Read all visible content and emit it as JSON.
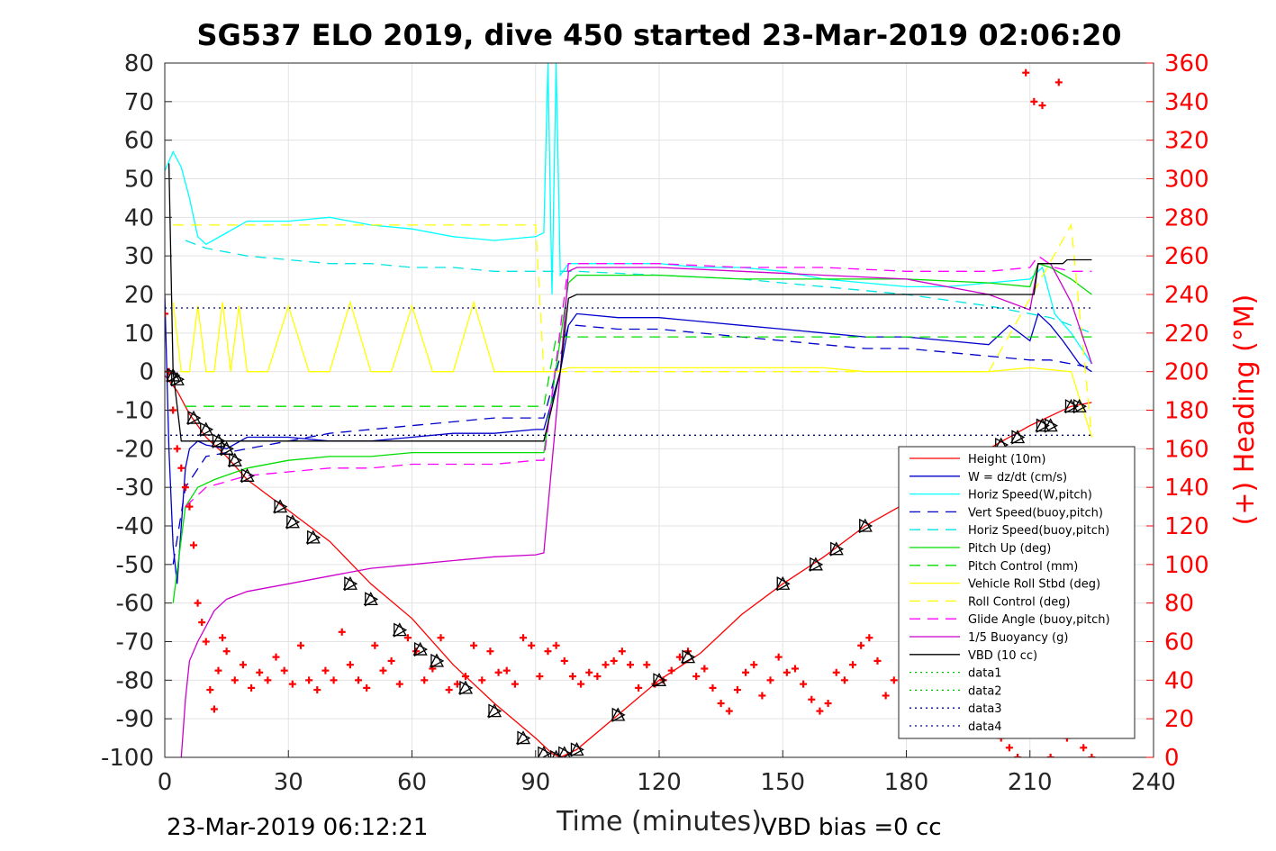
{
  "title": "SG537 ELO 2019, dive 450 started 23-Mar-2019 02:06:20",
  "footer": {
    "left": "23-Mar-2019 06:12:21",
    "right": "VBD bias =0 cc"
  },
  "chart_data": {
    "type": "line",
    "title": "SG537 ELO 2019, dive 450 started 23-Mar-2019 02:06:20",
    "xlabel": "Time (minutes)",
    "ylabel": "",
    "ylabel_right": "(+) Heading (°M)",
    "xlim": [
      0,
      240
    ],
    "ylim": [
      -100,
      80
    ],
    "ylim_right": [
      0,
      360
    ],
    "x_ticks": [
      "0",
      "30",
      "60",
      "90",
      "120",
      "150",
      "180",
      "210",
      "240"
    ],
    "y_ticks": [
      "-100",
      "-90",
      "-80",
      "-70",
      "-60",
      "-50",
      "-40",
      "-30",
      "-20",
      "-10",
      "0",
      "10",
      "20",
      "30",
      "40",
      "50",
      "60",
      "70",
      "80"
    ],
    "y_ticks_right": [
      "0",
      "20",
      "40",
      "60",
      "80",
      "100",
      "120",
      "140",
      "160",
      "180",
      "200",
      "220",
      "240",
      "260",
      "280",
      "300",
      "320",
      "340",
      "360"
    ],
    "grid": true,
    "legend_position": "right-middle",
    "series": [
      {
        "name": "Height (10m)",
        "color": "#ff0000",
        "style": "solid",
        "x": [
          0,
          3,
          6,
          10,
          15,
          20,
          30,
          40,
          50,
          60,
          70,
          80,
          90,
          94,
          96,
          100,
          110,
          120,
          130,
          140,
          150,
          160,
          170,
          180,
          190,
          200,
          210,
          220,
          225
        ],
        "y": [
          -1,
          -5,
          -11,
          -17,
          -22,
          -28,
          -36,
          -44,
          -55,
          -64,
          -76,
          -86,
          -95,
          -99,
          -100,
          -98,
          -89,
          -80,
          -73,
          -63,
          -55,
          -48,
          -40,
          -34,
          -26,
          -20,
          -14,
          -9,
          -8
        ]
      },
      {
        "name": "W = dz/dt (cm/s)",
        "color": "#0000cc",
        "style": "solid",
        "x": [
          0,
          1,
          2,
          3,
          4,
          5,
          6,
          8,
          10,
          15,
          20,
          30,
          40,
          50,
          60,
          70,
          80,
          90,
          92,
          96,
          98,
          100,
          110,
          120,
          130,
          140,
          150,
          160,
          170,
          180,
          190,
          200,
          205,
          210,
          212,
          215,
          218,
          222,
          225
        ],
        "y": [
          20,
          -20,
          -45,
          -55,
          -40,
          -25,
          -20,
          -18,
          -19,
          -20,
          -17,
          -17,
          -18,
          -18,
          -17,
          -16,
          -16,
          -15,
          -15,
          0,
          12,
          15,
          14,
          14,
          13,
          12,
          11,
          10,
          9,
          9,
          8,
          7,
          12,
          8,
          15,
          12,
          8,
          2,
          0
        ]
      },
      {
        "name": "Horiz Speed(W,pitch)",
        "color": "#00ffff",
        "style": "solid",
        "x": [
          0,
          2,
          4,
          6,
          8,
          10,
          15,
          20,
          30,
          40,
          50,
          60,
          70,
          80,
          90,
          92,
          93,
          94,
          95,
          96,
          98,
          100,
          110,
          120,
          130,
          140,
          150,
          160,
          170,
          180,
          190,
          200,
          210,
          213,
          216,
          220,
          225
        ],
        "y": [
          52,
          57,
          53,
          45,
          35,
          33,
          36,
          39,
          39,
          40,
          38,
          37,
          35,
          34,
          35,
          36,
          80,
          20,
          80,
          25,
          28,
          28,
          28,
          28,
          27,
          27,
          26,
          24,
          23,
          22,
          22,
          23,
          24,
          27,
          15,
          10,
          2
        ]
      },
      {
        "name": "Vert Speed(buoy,pitch)",
        "color": "#0000cc",
        "style": "dashed",
        "x": [
          2,
          5,
          10,
          20,
          30,
          40,
          50,
          60,
          70,
          80,
          90,
          92,
          98,
          100,
          110,
          120,
          130,
          140,
          150,
          160,
          170,
          180,
          190,
          200,
          210,
          215,
          220,
          225
        ],
        "y": [
          -50,
          -30,
          -22,
          -20,
          -18,
          -16,
          -15,
          -14,
          -13,
          -12,
          -12,
          -12,
          12,
          12,
          11,
          11,
          10,
          9,
          8,
          7,
          6,
          6,
          5,
          4,
          3,
          3,
          2,
          1
        ]
      },
      {
        "name": "Horiz Speed(buoy,pitch)",
        "color": "#00e5e5",
        "style": "dashed",
        "x": [
          5,
          10,
          20,
          30,
          40,
          50,
          60,
          70,
          80,
          90,
          92,
          98,
          100,
          120,
          140,
          160,
          180,
          200,
          210,
          215,
          220,
          225
        ],
        "y": [
          34,
          32,
          30,
          29,
          28,
          28,
          27,
          27,
          26,
          26,
          26,
          26,
          26,
          25,
          24,
          22,
          20,
          17,
          15,
          14,
          12,
          10
        ]
      },
      {
        "name": "Pitch Up (deg)",
        "color": "#00dd00",
        "style": "solid",
        "x": [
          2,
          5,
          8,
          12,
          20,
          30,
          40,
          50,
          60,
          70,
          80,
          90,
          92,
          98,
          100,
          120,
          140,
          160,
          180,
          200,
          210,
          212,
          215,
          220,
          225
        ],
        "y": [
          -60,
          -35,
          -30,
          -28,
          -25,
          -23,
          -22,
          -22,
          -21,
          -21,
          -21,
          -21,
          -21,
          23,
          25,
          25,
          24,
          24,
          24,
          23,
          22,
          28,
          27,
          24,
          20
        ]
      },
      {
        "name": "Pitch Control (mm)",
        "color": "#00dd00",
        "style": "dashed",
        "x": [
          5,
          90,
          92,
          95,
          180,
          200,
          225
        ],
        "y": [
          -9,
          -9,
          -9,
          9,
          9,
          9,
          9
        ]
      },
      {
        "name": "Vehicle Roll Stbd (deg)",
        "color": "#ffff00",
        "style": "solid",
        "x": [
          2,
          4,
          6,
          8,
          10,
          12,
          14,
          16,
          18,
          20,
          25,
          30,
          35,
          40,
          45,
          50,
          55,
          60,
          65,
          70,
          75,
          80,
          85,
          90,
          92,
          95,
          98,
          100,
          110,
          120,
          130,
          140,
          150,
          160,
          170,
          180,
          190,
          200,
          210,
          220,
          225
        ],
        "y": [
          18,
          0,
          0,
          17,
          0,
          0,
          18,
          0,
          17,
          0,
          0,
          17,
          0,
          0,
          18,
          0,
          0,
          17,
          0,
          0,
          18,
          0,
          0,
          0,
          0,
          0,
          1,
          1,
          1,
          1,
          1,
          1,
          1,
          1,
          0,
          0,
          0,
          0,
          1,
          0,
          -17
        ]
      },
      {
        "name": "Roll Control (deg)",
        "color": "#ffff00",
        "style": "dashed",
        "x": [
          2,
          10,
          20,
          40,
          60,
          80,
          90,
          92,
          96,
          120,
          150,
          180,
          200,
          220,
          225
        ],
        "y": [
          38,
          38,
          38,
          38,
          38,
          38,
          38,
          0,
          0,
          0,
          0,
          0,
          0,
          38,
          -17
        ]
      },
      {
        "name": "Glide Angle (buoy,pitch)",
        "color": "#ff00ff",
        "style": "dashed",
        "x": [
          5,
          10,
          20,
          30,
          40,
          50,
          60,
          70,
          80,
          90,
          92,
          98,
          100,
          120,
          140,
          160,
          180,
          200,
          210,
          212,
          216,
          220,
          225
        ],
        "y": [
          -35,
          -30,
          -27,
          -26,
          -25,
          -25,
          -24,
          -24,
          -24,
          -23,
          -23,
          28,
          28,
          28,
          27,
          27,
          26,
          26,
          27,
          30,
          27,
          26,
          26
        ]
      },
      {
        "name": "1/5 Buoyancy (g)",
        "color": "#cc00cc",
        "style": "solid",
        "x": [
          4,
          5,
          6,
          8,
          10,
          12,
          15,
          20,
          30,
          40,
          50,
          60,
          70,
          80,
          90,
          92,
          96,
          98,
          100,
          120,
          140,
          160,
          180,
          200,
          210,
          212,
          215,
          220,
          225
        ],
        "y": [
          -100,
          -85,
          -75,
          -70,
          -66,
          -62,
          -59,
          -57,
          -55,
          -53,
          -51,
          -50,
          -49,
          -48,
          -47.5,
          -47,
          0,
          26,
          27,
          27,
          26,
          25,
          24,
          20,
          16,
          28,
          28,
          18,
          2
        ]
      },
      {
        "name": "VBD (10 cc)",
        "color": "#000000",
        "style": "solid",
        "x": [
          1,
          2,
          4,
          90,
          92,
          96,
          98,
          100,
          210,
          211,
          212,
          218,
          219,
          225
        ],
        "y": [
          54,
          0,
          -18,
          -18,
          -18,
          0,
          19,
          20,
          20,
          20,
          28,
          28,
          29,
          29
        ]
      },
      {
        "name": "data1",
        "color": "#00bb00",
        "style": "dotted",
        "x": [],
        "y": []
      },
      {
        "name": "data2",
        "color": "#00bb00",
        "style": "dotted",
        "x": [],
        "y": []
      },
      {
        "name": "data3",
        "color": "#000088",
        "style": "dotted",
        "x": [
          0,
          225
        ],
        "y": [
          16.5,
          16.5
        ]
      },
      {
        "name": "data4",
        "color": "#000088",
        "style": "dotted",
        "x": [
          0,
          225
        ],
        "y": [
          -16.5,
          -16.5
        ]
      }
    ],
    "heading": {
      "axis": "right",
      "color": "#ff0000",
      "marker": "+",
      "x": [
        0,
        1,
        2,
        3,
        4,
        5,
        6,
        7,
        8,
        9,
        10,
        11,
        12,
        13,
        14,
        15,
        17,
        19,
        21,
        23,
        25,
        27,
        29,
        31,
        33,
        35,
        37,
        39,
        41,
        43,
        45,
        47,
        49,
        51,
        53,
        55,
        57,
        59,
        61,
        63,
        65,
        67,
        69,
        71,
        73,
        75,
        77,
        79,
        81,
        83,
        85,
        87,
        89,
        91,
        93,
        95,
        97,
        99,
        101,
        103,
        105,
        107,
        109,
        111,
        113,
        115,
        117,
        119,
        121,
        123,
        125,
        127,
        129,
        131,
        133,
        135,
        137,
        139,
        141,
        143,
        145,
        147,
        149,
        151,
        153,
        155,
        157,
        159,
        161,
        163,
        165,
        167,
        169,
        171,
        173,
        175,
        177,
        179,
        181,
        183,
        185,
        187,
        189,
        191,
        193,
        195,
        197,
        199,
        201,
        203,
        205,
        207,
        209,
        211,
        213,
        215,
        217,
        219,
        221,
        223,
        225
      ],
      "y": [
        230,
        200,
        180,
        160,
        150,
        140,
        130,
        110,
        80,
        70,
        60,
        35,
        25,
        45,
        62,
        55,
        40,
        48,
        36,
        44,
        40,
        52,
        45,
        38,
        58,
        40,
        35,
        45,
        40,
        65,
        48,
        40,
        36,
        58,
        45,
        50,
        38,
        62,
        55,
        40,
        46,
        62,
        35,
        38,
        42,
        58,
        40,
        55,
        44,
        45,
        38,
        62,
        58,
        42,
        55,
        58,
        50,
        42,
        38,
        44,
        42,
        48,
        50,
        55,
        48,
        36,
        48,
        38,
        40,
        45,
        52,
        55,
        42,
        46,
        36,
        28,
        24,
        35,
        44,
        48,
        32,
        40,
        52,
        44,
        46,
        38,
        30,
        24,
        28,
        44,
        40,
        48,
        58,
        62,
        50,
        32,
        40,
        48,
        30,
        38,
        44,
        55,
        42,
        46,
        52,
        40,
        36,
        42,
        30,
        10,
        5,
        0,
        355,
        340,
        338,
        0,
        350,
        10,
        40,
        5,
        0
      ]
    },
    "markers": {
      "type": "triangle",
      "color": "#000000",
      "x": [
        2,
        3,
        7,
        10,
        13,
        15,
        17,
        20,
        28,
        31,
        36,
        45,
        50,
        57,
        62,
        66,
        73,
        80,
        87,
        92,
        95,
        97,
        100,
        110,
        120,
        127,
        150,
        158,
        163,
        170,
        203,
        207,
        213,
        215,
        220,
        222
      ],
      "y": [
        -1,
        -2,
        -12,
        -15,
        -18,
        -20,
        -23,
        -27,
        -35,
        -39,
        -43,
        -55,
        -59,
        -67,
        -72,
        -75,
        -82,
        -88,
        -95,
        -99,
        -100,
        -99,
        -98,
        -89,
        -80,
        -74,
        -55,
        -50,
        -46,
        -40,
        -19,
        -17,
        -14,
        -14,
        -9,
        -9
      ]
    }
  }
}
